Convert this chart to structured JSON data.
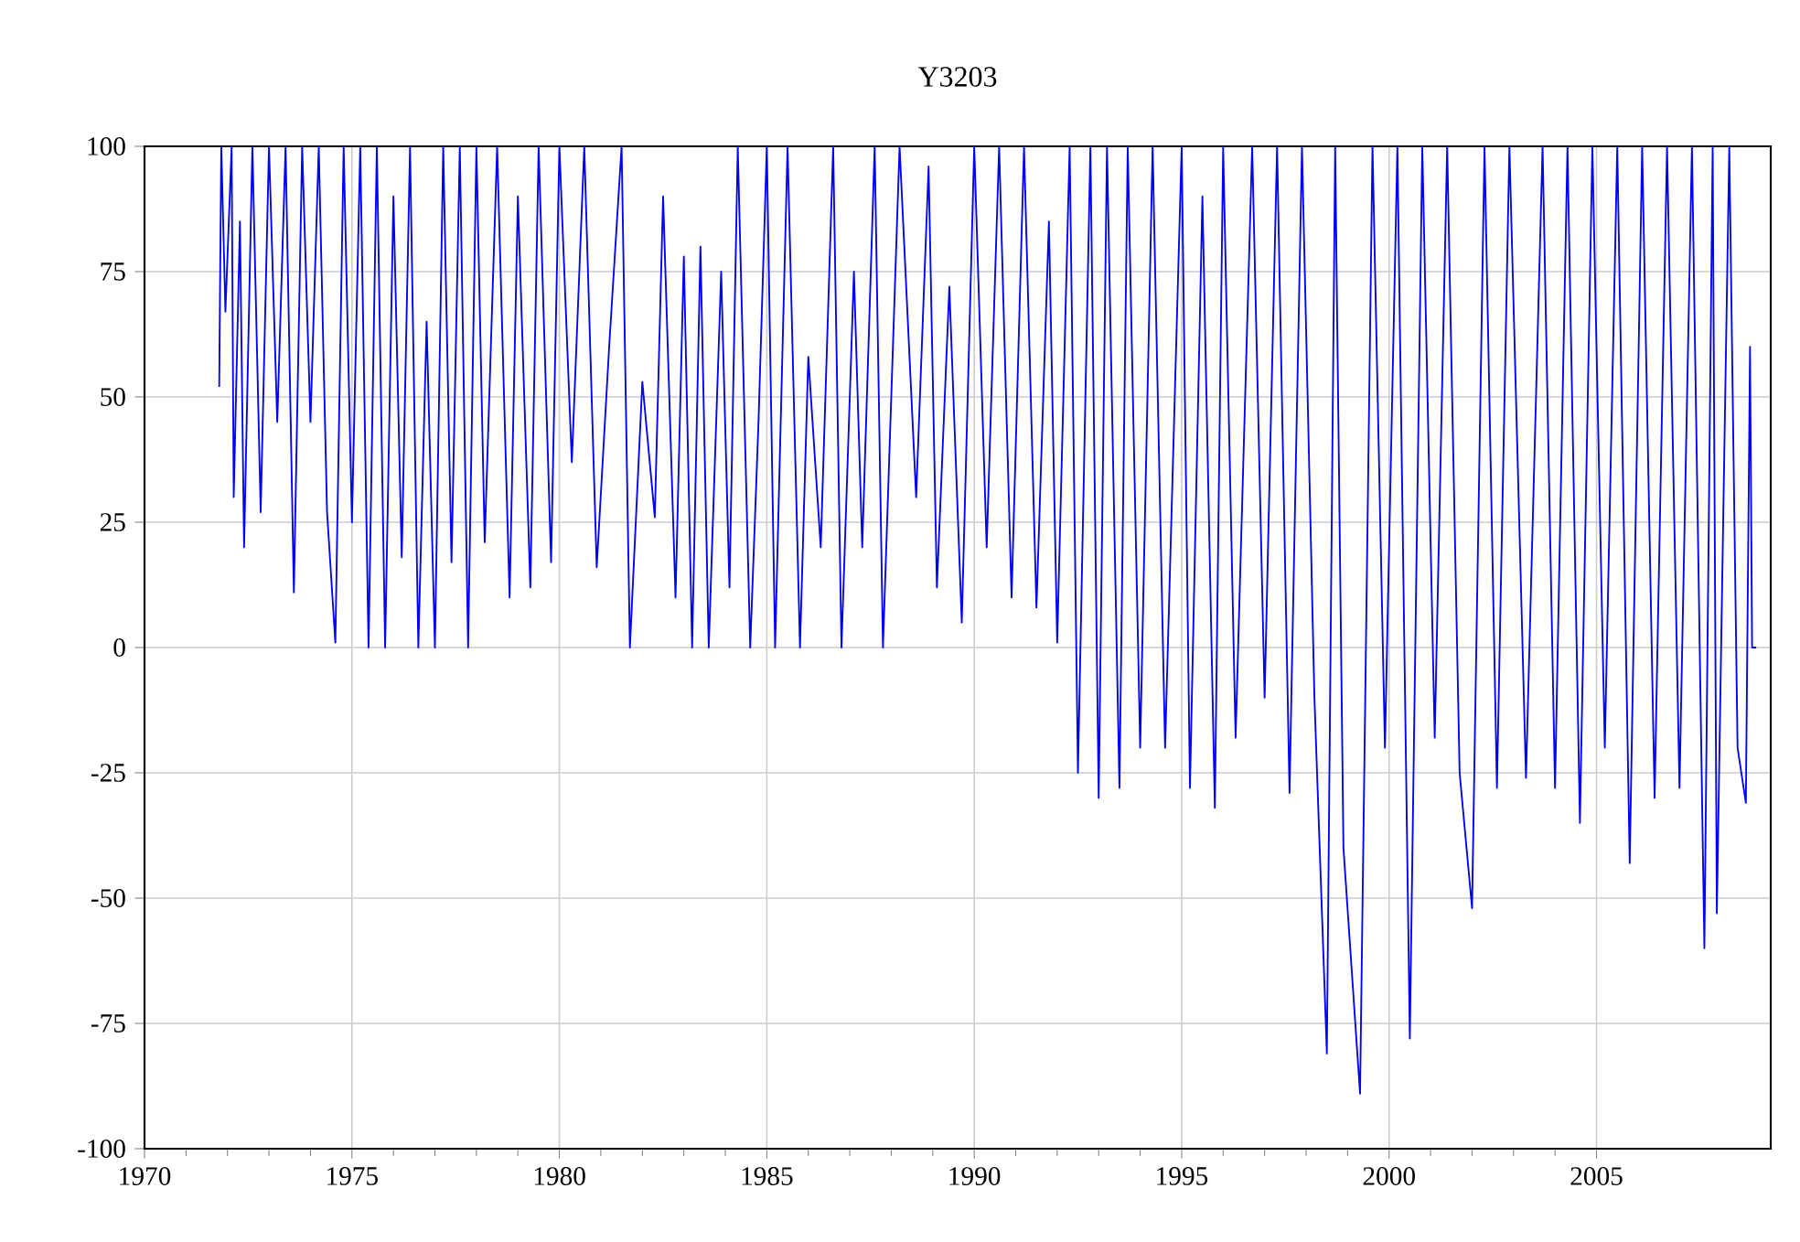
{
  "chart_data": {
    "type": "line",
    "title": "Y3203",
    "x": [
      1971.8,
      1971.85,
      1971.95,
      1972.1,
      1972.15,
      1972.3,
      1972.4,
      1972.6,
      1972.8,
      1973.0,
      1973.2,
      1973.4,
      1973.6,
      1973.8,
      1974.0,
      1974.2,
      1974.4,
      1974.6,
      1974.8,
      1975.0,
      1975.2,
      1975.4,
      1975.6,
      1975.8,
      1976.0,
      1976.2,
      1976.4,
      1976.6,
      1976.8,
      1977.0,
      1977.2,
      1977.4,
      1977.6,
      1977.8,
      1978.0,
      1978.2,
      1978.5,
      1978.8,
      1979.0,
      1979.3,
      1979.5,
      1979.8,
      1980.0,
      1980.3,
      1980.6,
      1980.9,
      1981.2,
      1981.5,
      1981.7,
      1982.0,
      1982.3,
      1982.5,
      1982.8,
      1983.0,
      1983.2,
      1983.4,
      1983.6,
      1983.9,
      1984.1,
      1984.3,
      1984.6,
      1984.8,
      1985.0,
      1985.2,
      1985.5,
      1985.8,
      1986.0,
      1986.3,
      1986.6,
      1986.8,
      1987.1,
      1987.3,
      1987.6,
      1987.8,
      1988.2,
      1988.6,
      1988.9,
      1989.1,
      1989.4,
      1989.7,
      1990.0,
      1990.3,
      1990.6,
      1990.9,
      1991.2,
      1991.5,
      1991.8,
      1992.0,
      1992.3,
      1992.5,
      1992.8,
      1993.0,
      1993.2,
      1993.5,
      1993.7,
      1994.0,
      1994.3,
      1994.6,
      1995.0,
      1995.2,
      1995.5,
      1995.8,
      1996.0,
      1996.3,
      1996.7,
      1997.0,
      1997.3,
      1997.6,
      1997.9,
      1998.2,
      1998.5,
      1998.7,
      1998.9,
      1999.3,
      1999.6,
      1999.9,
      2000.2,
      2000.5,
      2000.8,
      2001.1,
      2001.4,
      2001.7,
      2002.0,
      2002.3,
      2002.6,
      2002.9,
      2003.3,
      2003.7,
      2004.0,
      2004.3,
      2004.6,
      2004.9,
      2005.2,
      2005.5,
      2005.8,
      2006.1,
      2006.4,
      2006.7,
      2007.0,
      2007.3,
      2007.6,
      2007.8,
      2007.9,
      2008.2,
      2008.4,
      2008.6,
      2008.7,
      2008.75,
      2008.85
    ],
    "series": [
      {
        "color": "#0000ff",
        "values": [
          52,
          100,
          67,
          100,
          30,
          85,
          20,
          100,
          27,
          100,
          45,
          100,
          11,
          100,
          45,
          100,
          27,
          1,
          100,
          25,
          100,
          0,
          100,
          0,
          90,
          18,
          100,
          0,
          65,
          0,
          100,
          17,
          100,
          0,
          100,
          21,
          100,
          10,
          90,
          12,
          100,
          17,
          100,
          37,
          100,
          16,
          60,
          100,
          0,
          53,
          26,
          90,
          10,
          78,
          0,
          80,
          0,
          75,
          12,
          100,
          0,
          45,
          100,
          0,
          100,
          0,
          58,
          20,
          100,
          0,
          75,
          20,
          100,
          0,
          100,
          30,
          96,
          12,
          72,
          5,
          100,
          20,
          100,
          10,
          100,
          8,
          85,
          1,
          100,
          -25,
          100,
          -30,
          100,
          -28,
          100,
          -20,
          100,
          -20,
          100,
          -28,
          90,
          -32,
          100,
          -18,
          100,
          -10,
          100,
          -29,
          100,
          -10,
          -81,
          100,
          -40,
          -89,
          100,
          -20,
          100,
          -78,
          100,
          -18,
          100,
          -25,
          -52,
          100,
          -28,
          100,
          -26,
          100,
          -28,
          100,
          -35,
          100,
          -20,
          100,
          -43,
          100,
          -30,
          100,
          -28,
          100,
          -60,
          100,
          -53,
          100,
          -20,
          -31,
          60,
          0,
          0
        ]
      }
    ],
    "xlim": [
      1970,
      2009.2
    ],
    "ylim": [
      -100,
      100
    ],
    "xticks": [
      1970,
      1975,
      1980,
      1985,
      1990,
      1995,
      2000,
      2005
    ],
    "yticks": [
      -100,
      -75,
      -50,
      -25,
      0,
      25,
      50,
      75,
      100
    ],
    "grid": true,
    "marker": "none",
    "line_style": "solid"
  }
}
